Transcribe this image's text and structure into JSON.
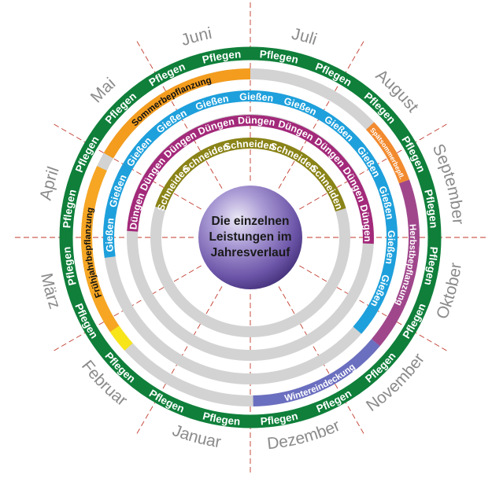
{
  "center_label": [
    "Die einzelnen",
    "Leistungen im",
    "Jahresverlauf"
  ],
  "months": [
    "Januar",
    "Februar",
    "März",
    "April",
    "Mai",
    "Juni",
    "Juli",
    "August",
    "September",
    "Oktober",
    "November",
    "Dezember"
  ],
  "colors": {
    "pflegen": "#0f7f3a",
    "bepflanzung": "#f6a623",
    "sommer": "#f39c1e",
    "spaetsommer": "#f28a2f",
    "herbst": "#a0478c",
    "winter": "#6b6fbf",
    "giessen": "#1ea0dc",
    "duengen": "#a3297a",
    "schneiden": "#8a8317",
    "track": "#d3d3d3",
    "month_text": "#8b8b8b",
    "guides": "#c0392b"
  },
  "rings": [
    {
      "id": "pflegen",
      "label": "Pflegen",
      "full_year": true
    },
    {
      "id": "bepflanzung",
      "segments": [
        "Frühjahrbepflanzung",
        "Sommerbepflanzung",
        "Spätsommerbepfl.",
        "Herbstbepflanzung",
        "Wintereindeckung"
      ]
    },
    {
      "id": "giessen",
      "label": "Gießen"
    },
    {
      "id": "duengen",
      "label": "Düngen"
    },
    {
      "id": "schneiden",
      "label": "Schneiden"
    }
  ]
}
